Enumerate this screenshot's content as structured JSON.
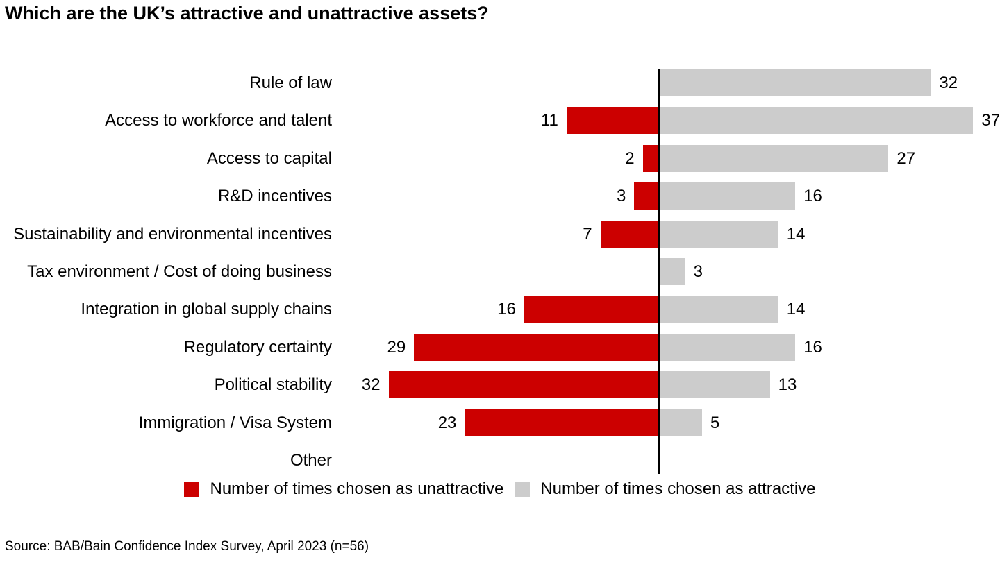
{
  "title": "Which are the UK’s attractive and unattractive assets?",
  "source": "Source: BAB/Bain Confidence Index Survey, April 2023 (n=56)",
  "legend": {
    "items": [
      {
        "label": "Number of times chosen as unattractive",
        "color": "#cc0000"
      },
      {
        "label": "Number of times chosen as attractive",
        "color": "#cccccc"
      }
    ]
  },
  "chart_data": {
    "type": "bar",
    "orientation": "horizontal_diverging",
    "title": "Which are the UK’s attractive and unattractive assets?",
    "categories": [
      "Rule of law",
      "Access to workforce and talent",
      "Access to capital",
      "R&D incentives",
      "Sustainability and environmental incentives",
      "Tax environment / Cost of doing business",
      "Integration in global supply chains",
      "Regulatory certainty",
      "Political stability",
      "Immigration / Visa System",
      "Other"
    ],
    "series": [
      {
        "name": "Number of times chosen as unattractive",
        "side": "left",
        "color": "#cc0000",
        "values": [
          null,
          11,
          2,
          3,
          7,
          null,
          16,
          29,
          32,
          23,
          null
        ]
      },
      {
        "name": "Number of times chosen as attractive",
        "side": "right",
        "color": "#cccccc",
        "values": [
          32,
          37,
          27,
          16,
          14,
          3,
          14,
          16,
          13,
          5,
          null
        ]
      }
    ],
    "value_labels_shown": true,
    "baseline_color": "#000000",
    "grid": false,
    "legend_position": "bottom",
    "xlim": [
      -48,
      40
    ]
  }
}
